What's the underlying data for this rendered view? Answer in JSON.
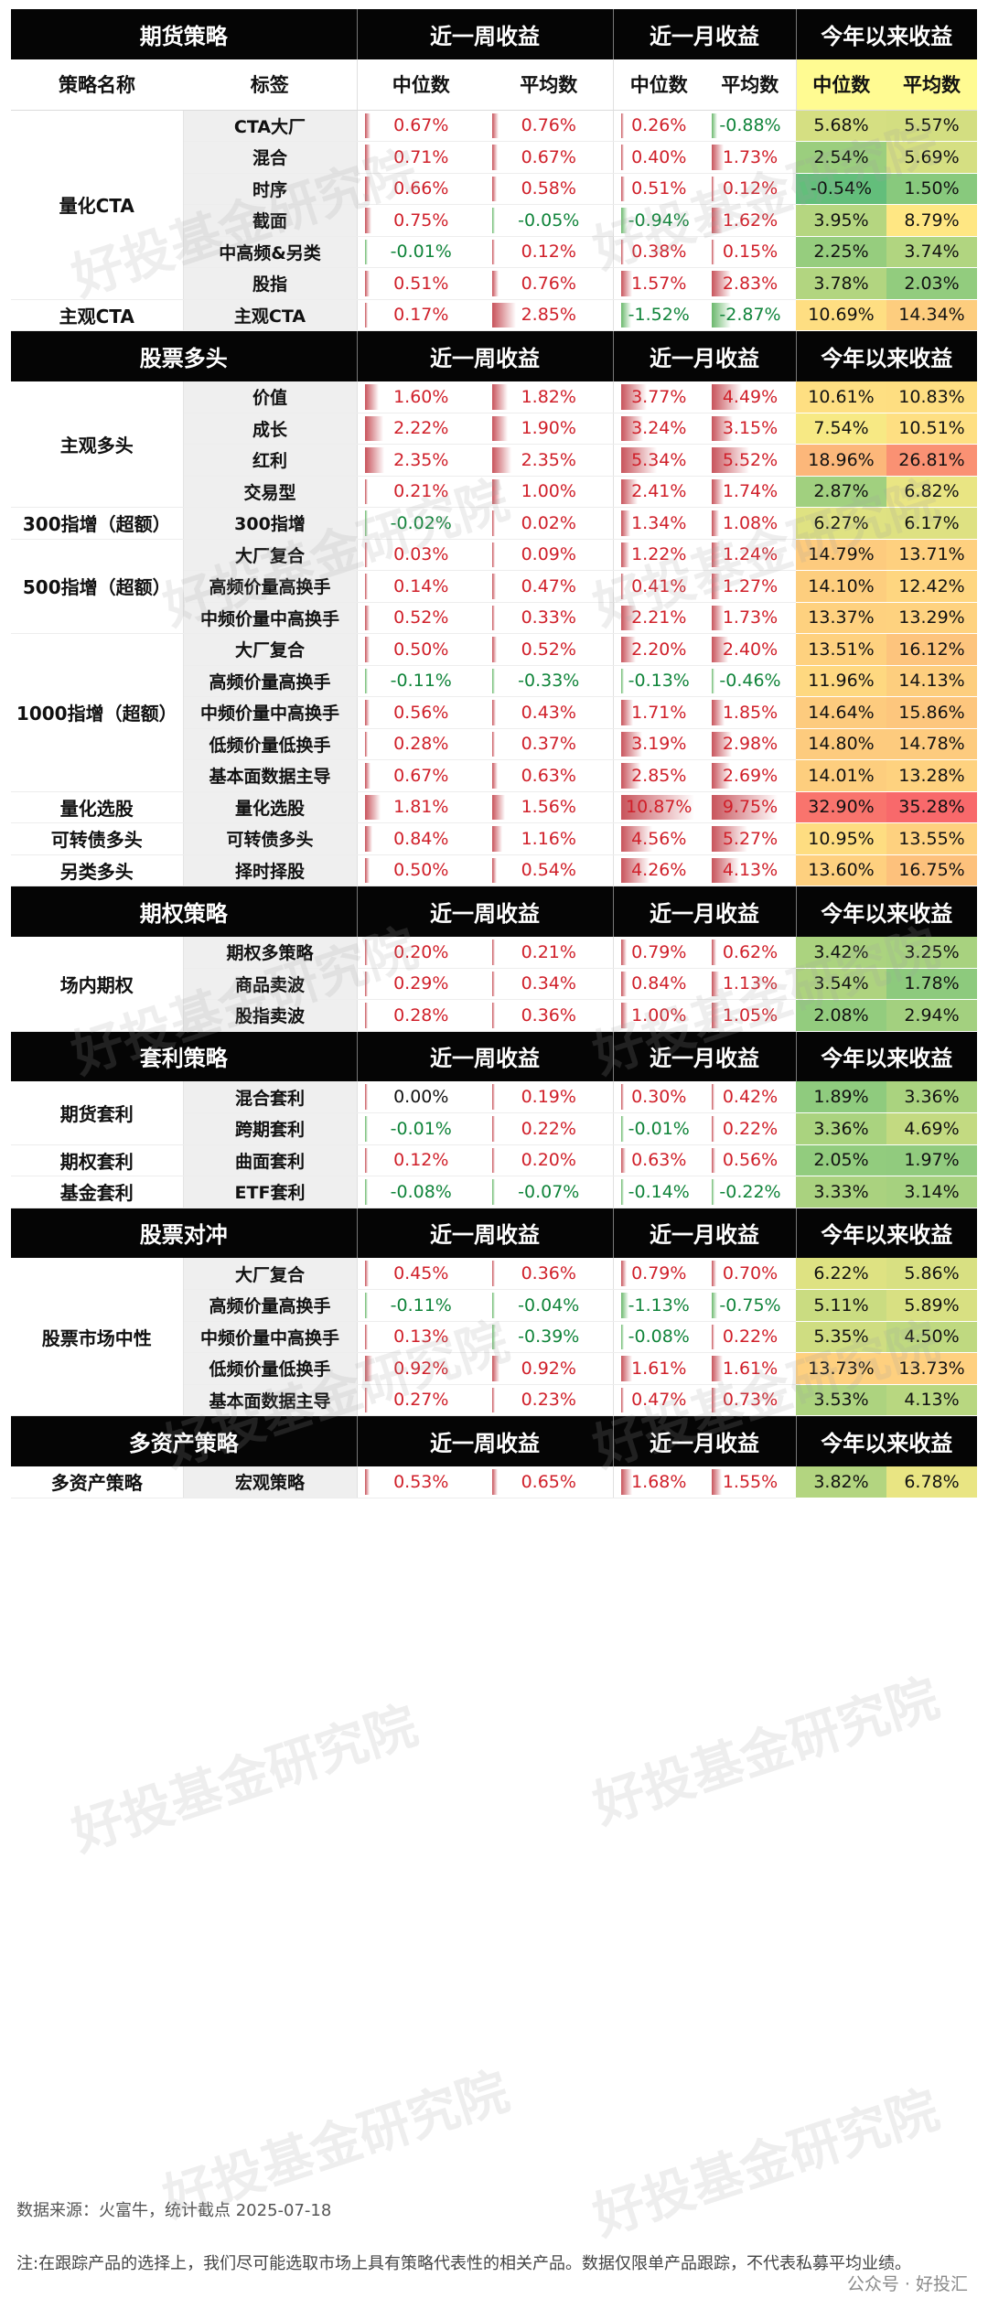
{
  "sections": [
    {
      "title": "期货策略",
      "h_week": "近一周收益",
      "h_month": "近一月收益",
      "h_ytd": "今年以来收益",
      "sub": {
        "name": "策略名称",
        "tag": "标签",
        "med": "中位数",
        "avg": "平均数"
      },
      "groups": [
        {
          "name": "量化CTA",
          "rows": [
            {
              "tag": "CTA大厂",
              "w_med": 0.67,
              "w_avg": 0.76,
              "m_med": 0.26,
              "m_avg": -0.88,
              "y_med": 5.68,
              "y_avg": 5.57
            },
            {
              "tag": "混合",
              "w_med": 0.71,
              "w_avg": 0.67,
              "m_med": 0.4,
              "m_avg": 1.73,
              "y_med": 2.54,
              "y_avg": 5.69
            },
            {
              "tag": "时序",
              "w_med": 0.66,
              "w_avg": 0.58,
              "m_med": 0.51,
              "m_avg": 0.12,
              "y_med": -0.54,
              "y_avg": 1.5
            },
            {
              "tag": "截面",
              "w_med": 0.75,
              "w_avg": -0.05,
              "m_med": -0.94,
              "m_avg": 1.62,
              "y_med": 3.95,
              "y_avg": 8.79
            },
            {
              "tag": "中高频&另类",
              "w_med": -0.01,
              "w_avg": 0.12,
              "m_med": 0.38,
              "m_avg": 0.15,
              "y_med": 2.25,
              "y_avg": 3.74
            },
            {
              "tag": "股指",
              "w_med": 0.51,
              "w_avg": 0.76,
              "m_med": 1.57,
              "m_avg": 2.83,
              "y_med": 3.78,
              "y_avg": 2.03
            }
          ]
        },
        {
          "name": "主观CTA",
          "rows": [
            {
              "tag": "主观CTA",
              "w_med": 0.17,
              "w_avg": 2.85,
              "m_med": -1.52,
              "m_avg": -2.87,
              "y_med": 10.69,
              "y_avg": 14.34
            }
          ]
        }
      ]
    },
    {
      "title": "股票多头",
      "h_week": "近一周收益",
      "h_month": "近一月收益",
      "h_ytd": "今年以来收益",
      "groups": [
        {
          "name": "主观多头",
          "rows": [
            {
              "tag": "价值",
              "w_med": 1.6,
              "w_avg": 1.82,
              "m_med": 3.77,
              "m_avg": 4.49,
              "y_med": 10.61,
              "y_avg": 10.83
            },
            {
              "tag": "成长",
              "w_med": 2.22,
              "w_avg": 1.9,
              "m_med": 3.24,
              "m_avg": 3.15,
              "y_med": 7.54,
              "y_avg": 10.51
            },
            {
              "tag": "红利",
              "w_med": 2.35,
              "w_avg": 2.35,
              "m_med": 5.34,
              "m_avg": 5.52,
              "y_med": 18.96,
              "y_avg": 26.81
            },
            {
              "tag": "交易型",
              "w_med": 0.21,
              "w_avg": 1.0,
              "m_med": 2.41,
              "m_avg": 1.74,
              "y_med": 2.87,
              "y_avg": 6.82
            }
          ]
        },
        {
          "name": "300指增（超额）",
          "rows": [
            {
              "tag": "300指增",
              "w_med": -0.02,
              "w_avg": 0.02,
              "m_med": 1.34,
              "m_avg": 1.08,
              "y_med": 6.27,
              "y_avg": 6.17
            }
          ]
        },
        {
          "name": "500指增（超额）",
          "rows": [
            {
              "tag": "大厂复合",
              "w_med": 0.03,
              "w_avg": 0.09,
              "m_med": 1.22,
              "m_avg": 1.24,
              "y_med": 14.79,
              "y_avg": 13.71
            },
            {
              "tag": "高频价量高换手",
              "w_med": 0.14,
              "w_avg": 0.47,
              "m_med": 0.41,
              "m_avg": 1.27,
              "y_med": 14.1,
              "y_avg": 12.42
            },
            {
              "tag": "中频价量中高换手",
              "w_med": 0.52,
              "w_avg": 0.33,
              "m_med": 2.21,
              "m_avg": 1.73,
              "y_med": 13.37,
              "y_avg": 13.29
            }
          ]
        },
        {
          "name": "1000指增（超额）",
          "rows": [
            {
              "tag": "大厂复合",
              "w_med": 0.5,
              "w_avg": 0.52,
              "m_med": 2.2,
              "m_avg": 2.4,
              "y_med": 13.51,
              "y_avg": 16.12
            },
            {
              "tag": "高频价量高换手",
              "w_med": -0.11,
              "w_avg": -0.33,
              "m_med": -0.13,
              "m_avg": -0.46,
              "y_med": 11.96,
              "y_avg": 14.13
            },
            {
              "tag": "中频价量中高换手",
              "w_med": 0.56,
              "w_avg": 0.43,
              "m_med": 1.71,
              "m_avg": 1.85,
              "y_med": 14.64,
              "y_avg": 15.86
            },
            {
              "tag": "低频价量低换手",
              "w_med": 0.28,
              "w_avg": 0.37,
              "m_med": 3.19,
              "m_avg": 2.98,
              "y_med": 14.8,
              "y_avg": 14.78
            },
            {
              "tag": "基本面数据主导",
              "w_med": 0.67,
              "w_avg": 0.63,
              "m_med": 2.85,
              "m_avg": 2.69,
              "y_med": 14.01,
              "y_avg": 13.28
            }
          ]
        },
        {
          "name": "量化选股",
          "rows": [
            {
              "tag": "量化选股",
              "w_med": 1.81,
              "w_avg": 1.56,
              "m_med": 10.87,
              "m_avg": 9.75,
              "y_med": 32.9,
              "y_avg": 35.28
            }
          ]
        },
        {
          "name": "可转债多头",
          "rows": [
            {
              "tag": "可转债多头",
              "w_med": 0.84,
              "w_avg": 1.16,
              "m_med": 4.56,
              "m_avg": 5.27,
              "y_med": 10.95,
              "y_avg": 13.55
            }
          ]
        },
        {
          "name": "另类多头",
          "rows": [
            {
              "tag": "择时择股",
              "w_med": 0.5,
              "w_avg": 0.54,
              "m_med": 4.26,
              "m_avg": 4.13,
              "y_med": 13.6,
              "y_avg": 16.75
            }
          ]
        }
      ]
    },
    {
      "title": "期权策略",
      "h_week": "近一周收益",
      "h_month": "近一月收益",
      "h_ytd": "今年以来收益",
      "groups": [
        {
          "name": "场内期权",
          "rows": [
            {
              "tag": "期权多策略",
              "w_med": 0.2,
              "w_avg": 0.21,
              "m_med": 0.79,
              "m_avg": 0.62,
              "y_med": 3.42,
              "y_avg": 3.25
            },
            {
              "tag": "商品卖波",
              "w_med": 0.29,
              "w_avg": 0.34,
              "m_med": 0.84,
              "m_avg": 1.13,
              "y_med": 3.54,
              "y_avg": 1.78
            },
            {
              "tag": "股指卖波",
              "w_med": 0.28,
              "w_avg": 0.36,
              "m_med": 1.0,
              "m_avg": 1.05,
              "y_med": 2.08,
              "y_avg": 2.94
            }
          ]
        }
      ]
    },
    {
      "title": "套利策略",
      "h_week": "近一周收益",
      "h_month": "近一月收益",
      "h_ytd": "今年以来收益",
      "groups": [
        {
          "name": "期货套利",
          "rows": [
            {
              "tag": "混合套利",
              "w_med": 0.0,
              "w_avg": 0.19,
              "m_med": 0.3,
              "m_avg": 0.42,
              "y_med": 1.89,
              "y_avg": 3.36
            },
            {
              "tag": "跨期套利",
              "w_med": -0.01,
              "w_avg": 0.22,
              "m_med": -0.01,
              "m_avg": 0.22,
              "y_med": 3.36,
              "y_avg": 4.69
            }
          ]
        },
        {
          "name": "期权套利",
          "rows": [
            {
              "tag": "曲面套利",
              "w_med": 0.12,
              "w_avg": 0.2,
              "m_med": 0.63,
              "m_avg": 0.56,
              "y_med": 2.05,
              "y_avg": 1.97
            }
          ]
        },
        {
          "name": "基金套利",
          "rows": [
            {
              "tag": "ETF套利",
              "w_med": -0.08,
              "w_avg": -0.07,
              "m_med": -0.14,
              "m_avg": -0.22,
              "y_med": 3.33,
              "y_avg": 3.14
            }
          ]
        }
      ]
    },
    {
      "title": "股票对冲",
      "h_week": "近一周收益",
      "h_month": "近一月收益",
      "h_ytd": "今年以来收益",
      "groups": [
        {
          "name": "股票市场中性",
          "rows": [
            {
              "tag": "大厂复合",
              "w_med": 0.45,
              "w_avg": 0.36,
              "m_med": 0.79,
              "m_avg": 0.7,
              "y_med": 6.22,
              "y_avg": 5.86
            },
            {
              "tag": "高频价量高换手",
              "w_med": -0.11,
              "w_avg": -0.04,
              "m_med": -1.13,
              "m_avg": -0.75,
              "y_med": 5.11,
              "y_avg": 5.89
            },
            {
              "tag": "中频价量中高换手",
              "w_med": 0.13,
              "w_avg": -0.39,
              "m_med": -0.08,
              "m_avg": 0.22,
              "y_med": 5.35,
              "y_avg": 4.5
            },
            {
              "tag": "低频价量低换手",
              "w_med": 0.92,
              "w_avg": 0.92,
              "m_med": 1.61,
              "m_avg": 1.61,
              "y_med": 13.73,
              "y_avg": 13.73
            },
            {
              "tag": "基本面数据主导",
              "w_med": 0.27,
              "w_avg": 0.23,
              "m_med": 0.47,
              "m_avg": 0.73,
              "y_med": 3.53,
              "y_avg": 4.13
            }
          ]
        }
      ]
    },
    {
      "title": "多资产策略",
      "h_week": "近一周收益",
      "h_month": "近一月收益",
      "h_ytd": "今年以来收益",
      "groups": [
        {
          "name": "多资产策略",
          "rows": [
            {
              "tag": "宏观策略",
              "w_med": 0.53,
              "w_avg": 0.65,
              "m_med": 1.68,
              "m_avg": 1.55,
              "y_med": 3.82,
              "y_avg": 6.78
            }
          ]
        }
      ]
    }
  ],
  "footer": {
    "source": "数据来源：火富牛，统计截点 2025-07-18",
    "note": "注:在跟踪产品的选择上，我们尽可能选取市场上具有策略代表性的相关产品。数据仅限单产品跟踪，不代表私募平均业绩。",
    "badge": "公众号 · 好投汇"
  },
  "watermark": "好投基金研究院",
  "colors": {
    "header_bg": "#050505",
    "positive": "#d0202a",
    "negative": "#10843a",
    "tag_bg": "#efefef",
    "bar_pos": "#c8535b",
    "bar_neg": "#6ab86c",
    "ytd_low": "#63be7b",
    "ytd_mid": "#ffeb84",
    "ytd_high": "#f8696b"
  }
}
